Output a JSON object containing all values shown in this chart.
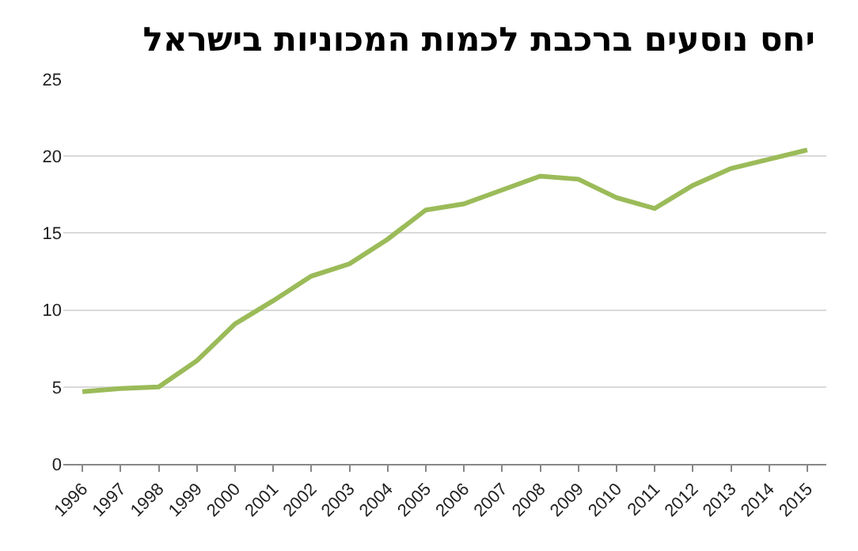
{
  "chart_data": {
    "type": "line",
    "title": "יחס נוסעים ברכבת לכמות המכוניות בישראל",
    "categories": [
      "1996",
      "1997",
      "1998",
      "1999",
      "2000",
      "2001",
      "2002",
      "2003",
      "2004",
      "2005",
      "2006",
      "2007",
      "2008",
      "2009",
      "2010",
      "2011",
      "2012",
      "2013",
      "2014",
      "2015"
    ],
    "series": [
      {
        "color": "#9bbb59",
        "values": [
          4.7,
          4.9,
          5.0,
          6.7,
          9.1,
          10.6,
          12.2,
          13.0,
          14.6,
          16.5,
          16.9,
          17.8,
          18.7,
          18.5,
          17.3,
          16.6,
          18.1,
          19.2,
          19.8,
          20.4
        ]
      }
    ],
    "ylim": [
      0,
      25
    ],
    "yticks": [
      0,
      5,
      10,
      15,
      20,
      25
    ],
    "grid": "y",
    "marker": "none",
    "line_style": "solid"
  }
}
